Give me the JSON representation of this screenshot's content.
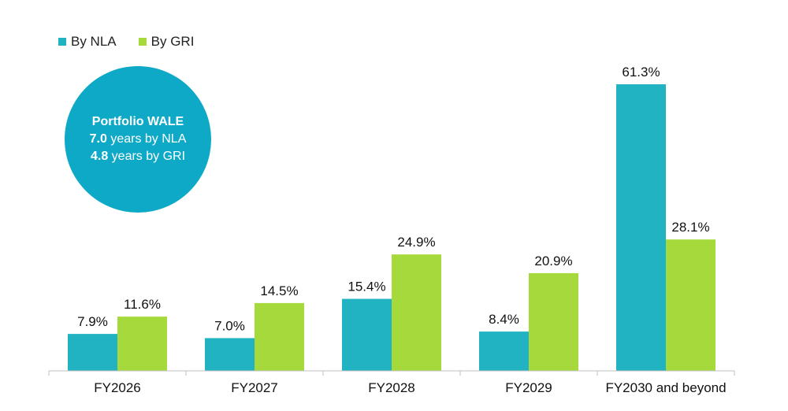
{
  "legend": {
    "nla_label": "By NLA",
    "gri_label": "By GRI"
  },
  "wale": {
    "title": "Portfolio WALE",
    "nla_value": "7.0",
    "nla_text": " years by NLA",
    "gri_value": "4.8",
    "gri_text": " years by GRI"
  },
  "colors": {
    "nla": "#21b3c1",
    "gri": "#a6d93b",
    "wale_circle": "#0fa9c8",
    "axis": "#bfbfbf"
  },
  "chart_data": {
    "type": "bar",
    "categories": [
      "FY2026",
      "FY2027",
      "FY2028",
      "FY2029",
      "FY2030 and beyond"
    ],
    "series": [
      {
        "name": "By NLA",
        "values": [
          7.9,
          7.0,
          15.4,
          8.4,
          61.3
        ],
        "labels": [
          "7.9%",
          "7.0%",
          "15.4%",
          "8.4%",
          "61.3%"
        ]
      },
      {
        "name": "By GRI",
        "values": [
          11.6,
          14.5,
          24.9,
          20.9,
          28.1
        ],
        "labels": [
          "11.6%",
          "14.5%",
          "24.9%",
          "20.9%",
          "28.1%"
        ]
      }
    ],
    "ylim": [
      0,
      64
    ],
    "grid": false,
    "legend_position": "top-left"
  }
}
